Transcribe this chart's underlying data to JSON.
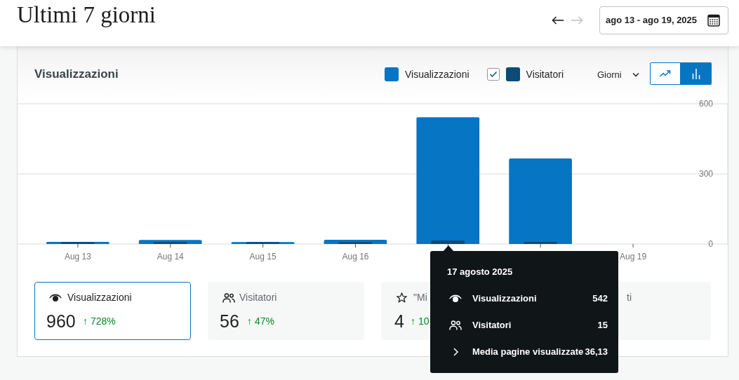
{
  "chart_data": {
    "type": "bar",
    "title": "Ultimi 7 giorni",
    "subtitle": "Visualizzazioni",
    "categories": [
      "Aug 13",
      "Aug 14",
      "Aug 15",
      "Aug 16",
      null,
      null,
      "Aug 19"
    ],
    "series": [
      {
        "name": "Visualizzazioni",
        "color": "#0675c4",
        "values": [
          9,
          17,
          8,
          18,
          542,
          366,
          0
        ]
      },
      {
        "name": "Visitatori",
        "color": "#0a4b78",
        "values": [
          8,
          8,
          8,
          8,
          15,
          9,
          0
        ]
      }
    ],
    "ylim": [
      0,
      600
    ],
    "yticks": [
      0,
      300,
      600
    ],
    "grid": "y",
    "legend": "top right",
    "annotations": [
      "ago 13 - ago 19, 2025",
      "Giorni",
      "Visualizzazioni",
      "960",
      "↑ 728%",
      "Visitatori",
      "56",
      "↑ 47%",
      "\"Mi",
      "4",
      "↑ 10",
      "ti",
      "17 agosto 2025",
      "Visualizzazioni",
      "542",
      "Visitatori",
      "15",
      "Media pagine visualizzate",
      "36,13"
    ]
  }
}
